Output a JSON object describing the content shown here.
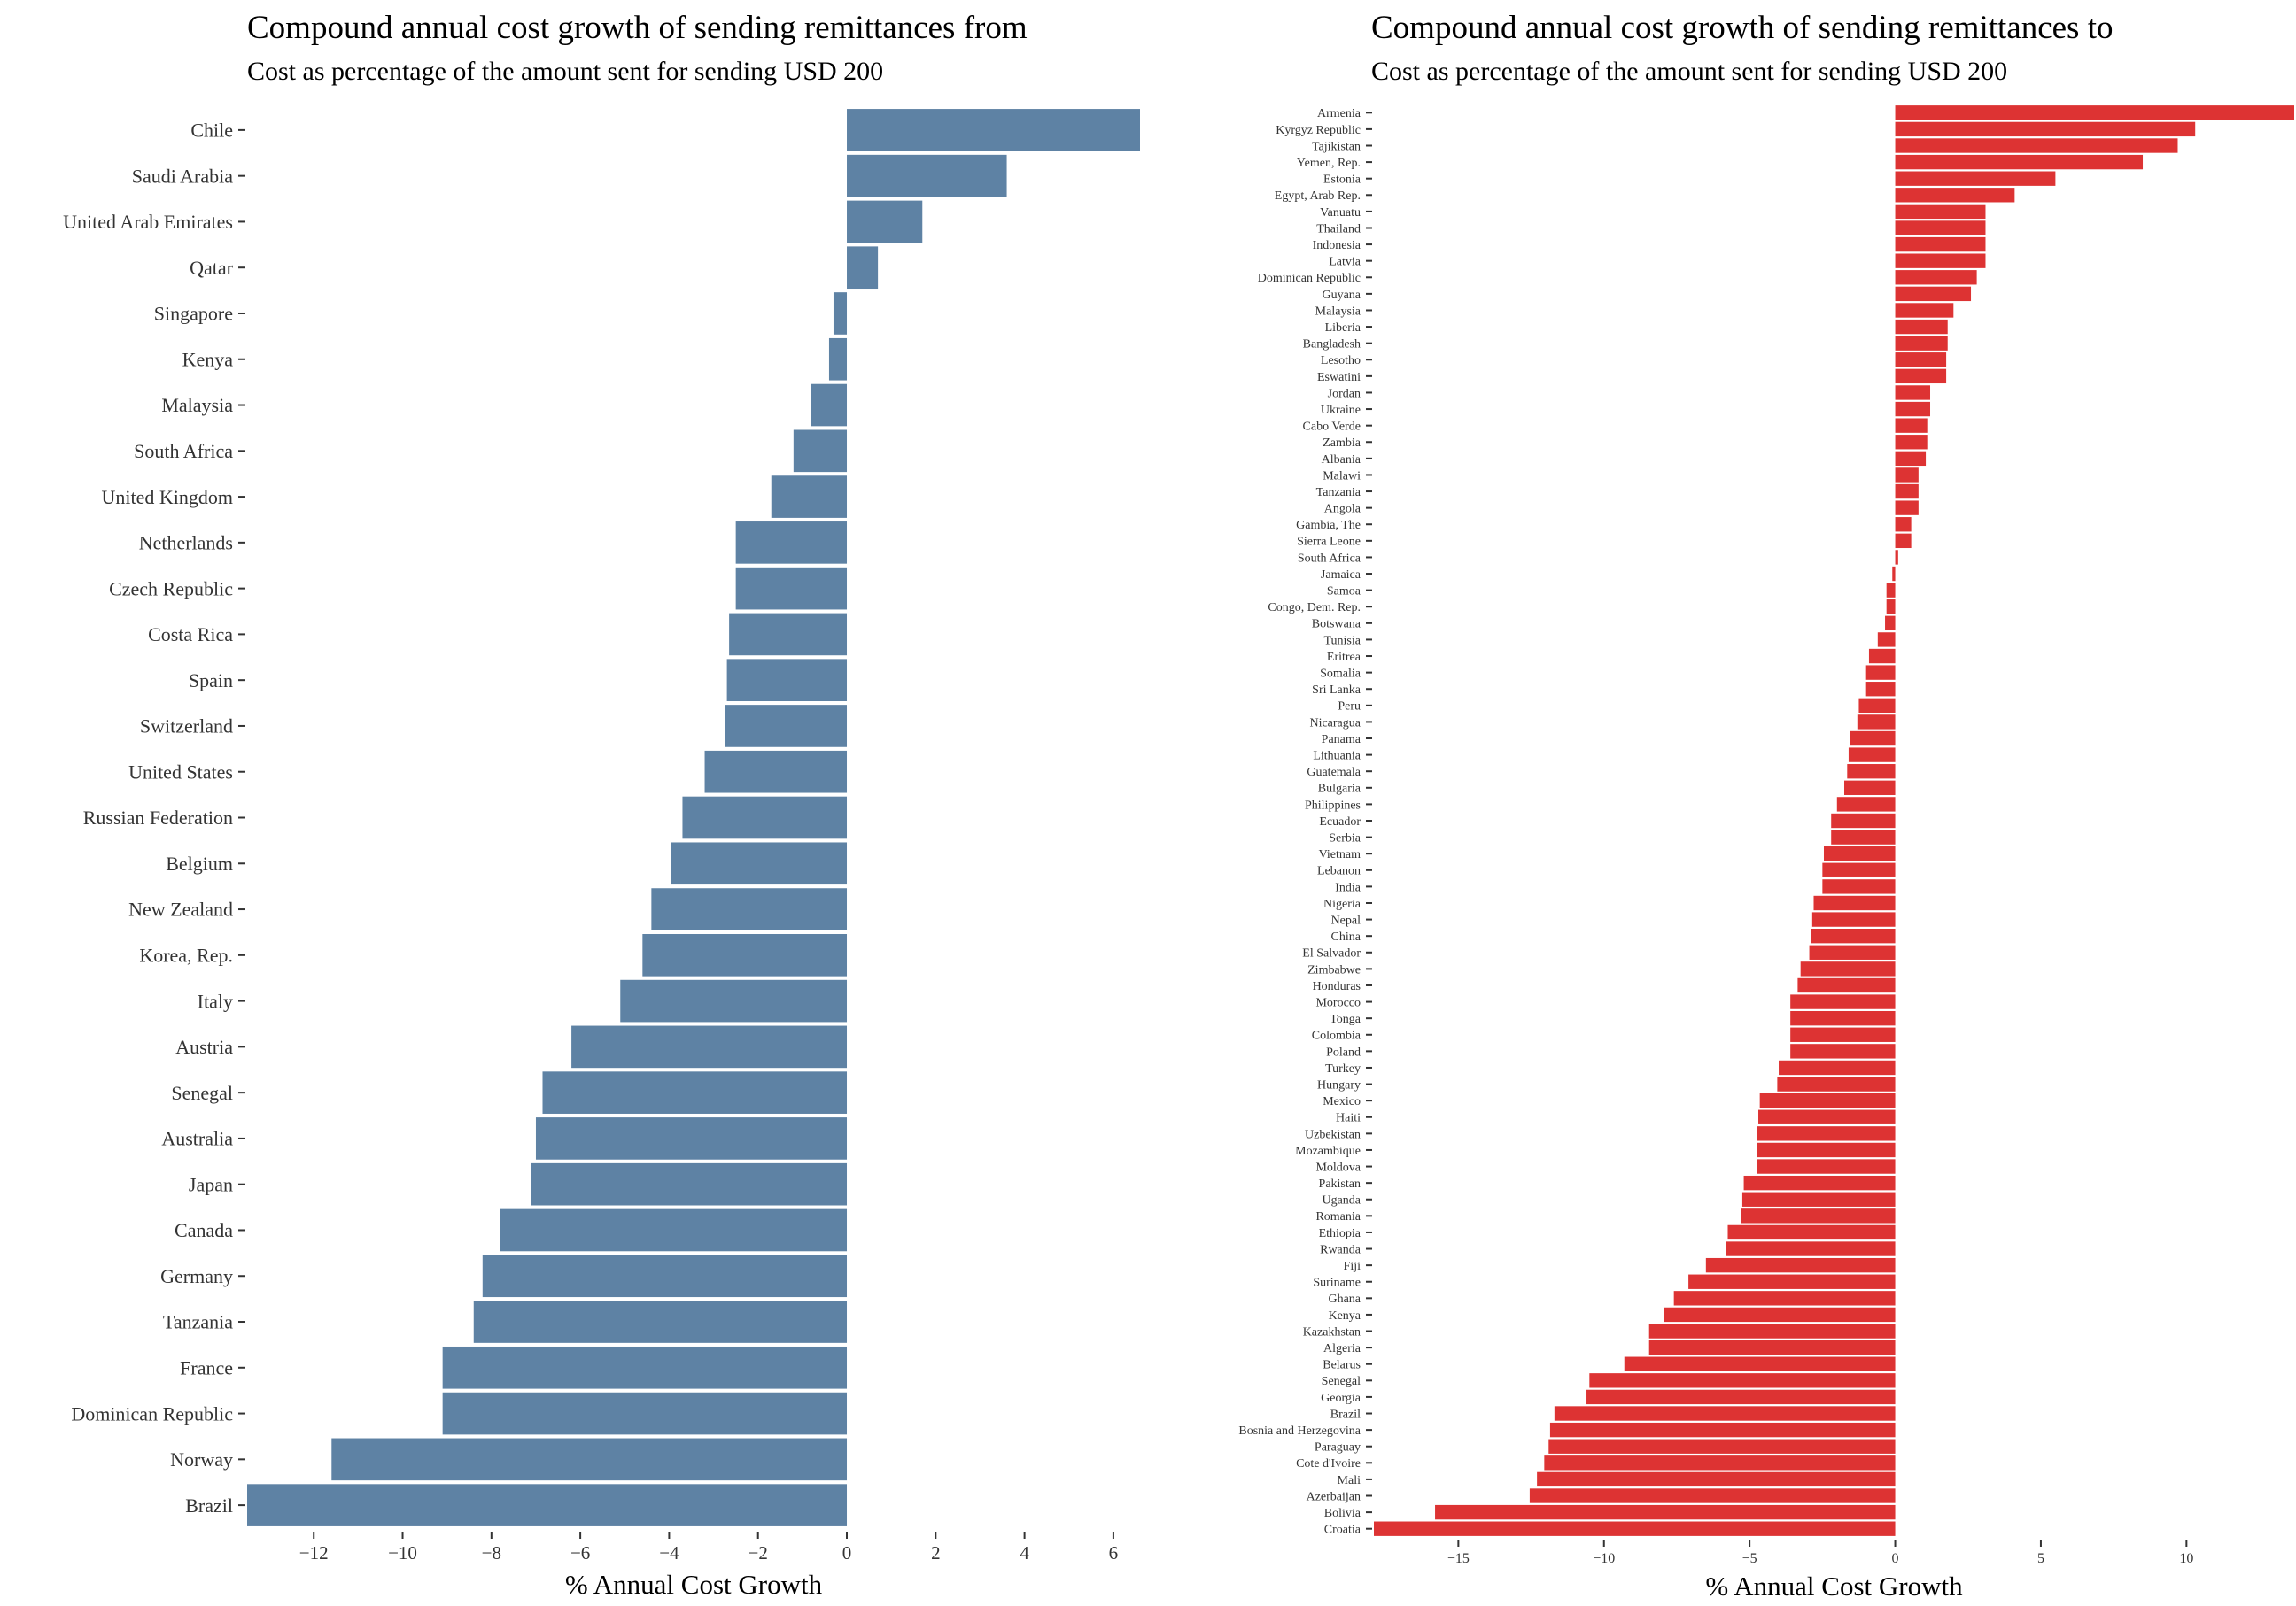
{
  "chart_data": [
    {
      "type": "bar",
      "orientation": "horizontal",
      "title": "Compound annual cost growth of sending remittances from",
      "subtitle": "Cost as percentage of the amount sent for sending USD 200",
      "xlabel": "% Annual Cost Growth",
      "ylabel": "",
      "xlim": [
        -13.5,
        6.6
      ],
      "xticks": [
        -12,
        -10,
        -8,
        -6,
        -4,
        -2,
        0,
        2,
        4,
        6
      ],
      "grid": false,
      "bar_color": "#5E82A4",
      "categories": [
        "Chile",
        "Saudi Arabia",
        "United Arab Emirates",
        "Qatar",
        "Singapore",
        "Kenya",
        "Malaysia",
        "South Africa",
        "United Kingdom",
        "Netherlands",
        "Czech Republic",
        "Costa Rica",
        "Spain",
        "Switzerland",
        "United States",
        "Russian Federation",
        "Belgium",
        "New Zealand",
        "Korea, Rep.",
        "Italy",
        "Austria",
        "Senegal",
        "Australia",
        "Japan",
        "Canada",
        "Germany",
        "Tanzania",
        "France",
        "Dominican Republic",
        "Norway",
        "Brazil"
      ],
      "values": [
        6.6,
        3.6,
        1.7,
        0.7,
        -0.3,
        -0.4,
        -0.8,
        -1.2,
        -1.7,
        -2.5,
        -2.5,
        -2.65,
        -2.7,
        -2.75,
        -3.2,
        -3.7,
        -3.95,
        -4.4,
        -4.6,
        -5.1,
        -6.2,
        -6.85,
        -7.0,
        -7.1,
        -7.8,
        -8.2,
        -8.4,
        -9.1,
        -9.1,
        -11.6,
        -13.5
      ]
    },
    {
      "type": "bar",
      "orientation": "horizontal",
      "title": "Compound annual cost growth of sending remittances to",
      "subtitle": "Cost as percentage of the amount sent for sending USD 200",
      "xlabel": "% Annual Cost Growth",
      "ylabel": "",
      "xlim": [
        -17.9,
        13.7
      ],
      "xticks": [
        -15,
        -10,
        -5,
        0,
        5,
        10
      ],
      "grid": false,
      "bar_color": "#DD3333",
      "categories": [
        "Armenia",
        "Kyrgyz Republic",
        "Tajikistan",
        "Yemen, Rep.",
        "Estonia",
        "Egypt, Arab Rep.",
        "Vanuatu",
        "Thailand",
        "Indonesia",
        "Latvia",
        "Dominican Republic",
        "Guyana",
        "Malaysia",
        "Liberia",
        "Bangladesh",
        "Lesotho",
        "Eswatini",
        "Jordan",
        "Ukraine",
        "Cabo Verde",
        "Zambia",
        "Albania",
        "Malawi",
        "Tanzania",
        "Angola",
        "Gambia, The",
        "Sierra Leone",
        "South Africa",
        "Jamaica",
        "Samoa",
        "Congo, Dem. Rep.",
        "Botswana",
        "Tunisia",
        "Eritrea",
        "Somalia",
        "Sri Lanka",
        "Peru",
        "Nicaragua",
        "Panama",
        "Lithuania",
        "Guatemala",
        "Bulgaria",
        "Philippines",
        "Ecuador",
        "Serbia",
        "Vietnam",
        "Lebanon",
        "India",
        "Nigeria",
        "Nepal",
        "China",
        "El Salvador",
        "Zimbabwe",
        "Honduras",
        "Morocco",
        "Tonga",
        "Colombia",
        "Poland",
        "Turkey",
        "Hungary",
        "Mexico",
        "Haiti",
        "Uzbekistan",
        "Mozambique",
        "Moldova",
        "Pakistan",
        "Uganda",
        "Romania",
        "Ethiopia",
        "Rwanda",
        "Fiji",
        "Suriname",
        "Ghana",
        "Kenya",
        "Kazakhstan",
        "Algeria",
        "Belarus",
        "Senegal",
        "Georgia",
        "Brazil",
        "Bosnia and Herzegovina",
        "Paraguay",
        "Cote d'Ivoire",
        "Mali",
        "Azerbaijan",
        "Bolivia",
        "Croatia"
      ],
      "values": [
        13.7,
        10.3,
        9.7,
        8.5,
        5.5,
        4.1,
        3.1,
        3.1,
        3.1,
        3.1,
        2.8,
        2.6,
        2.0,
        1.8,
        1.8,
        1.75,
        1.75,
        1.2,
        1.2,
        1.1,
        1.1,
        1.05,
        0.8,
        0.8,
        0.8,
        0.55,
        0.55,
        0.1,
        -0.1,
        -0.3,
        -0.3,
        -0.35,
        -0.6,
        -0.9,
        -1.0,
        -1.0,
        -1.25,
        -1.3,
        -1.55,
        -1.6,
        -1.65,
        -1.75,
        -2.0,
        -2.2,
        -2.2,
        -2.45,
        -2.5,
        -2.5,
        -2.8,
        -2.85,
        -2.9,
        -2.95,
        -3.25,
        -3.35,
        -3.6,
        -3.6,
        -3.6,
        -3.6,
        -4.0,
        -4.05,
        -4.65,
        -4.7,
        -4.75,
        -4.75,
        -4.75,
        -5.2,
        -5.25,
        -5.3,
        -5.75,
        -5.8,
        -6.5,
        -7.1,
        -7.6,
        -7.95,
        -8.45,
        -8.45,
        -9.3,
        -10.5,
        -10.6,
        -11.7,
        -11.85,
        -11.9,
        -12.05,
        -12.3,
        -12.55,
        -15.8,
        -17.9
      ]
    }
  ]
}
